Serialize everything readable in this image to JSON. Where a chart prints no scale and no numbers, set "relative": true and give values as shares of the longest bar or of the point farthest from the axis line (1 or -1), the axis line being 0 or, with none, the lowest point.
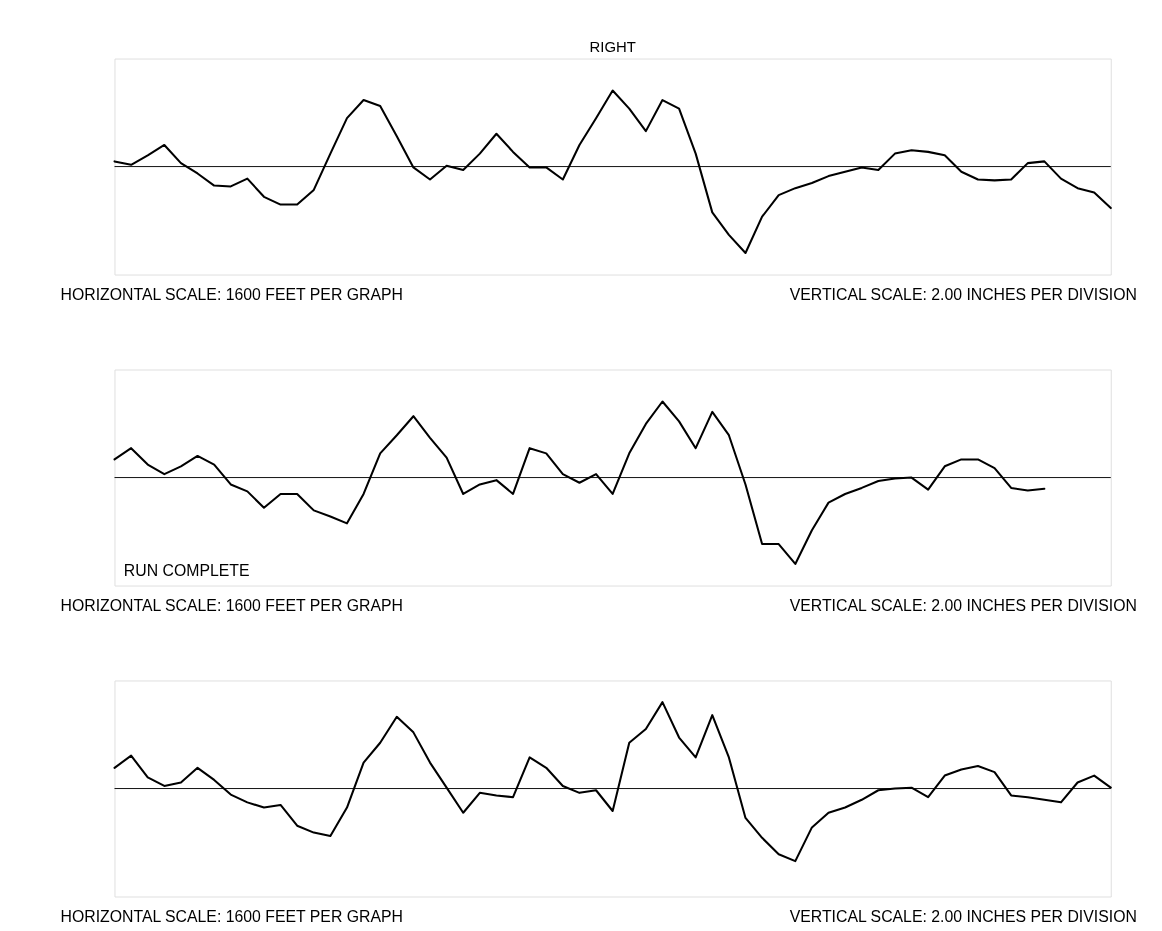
{
  "chart_data": [
    {
      "type": "line",
      "title": "RIGHT",
      "relative": true,
      "categories": [
        null,
        null,
        null,
        null,
        null,
        null,
        null,
        null,
        null,
        null,
        null,
        null,
        null,
        null,
        null,
        null,
        null,
        null,
        null,
        null,
        null,
        null,
        null,
        null,
        null,
        null,
        null,
        null,
        null,
        null,
        null,
        null,
        null,
        null,
        null,
        null,
        null,
        null,
        null,
        null,
        null,
        null,
        null,
        null,
        null,
        null,
        null,
        null,
        null,
        null,
        null,
        null,
        null,
        null,
        null,
        null,
        null,
        null,
        null,
        null,
        null
      ],
      "series": [
        {
          "color": "#000000",
          "values": [
            0.06,
            0.02,
            0.13,
            0.25,
            0.04,
            -0.08,
            -0.22,
            -0.23,
            -0.14,
            -0.35,
            -0.44,
            -0.44,
            -0.27,
            0.15,
            0.56,
            0.77,
            0.7,
            0.35,
            -0.01,
            -0.15,
            0.01,
            -0.04,
            0.15,
            0.38,
            0.17,
            -0.01,
            -0.01,
            -0.15,
            0.25,
            0.56,
            0.88,
            0.67,
            0.41,
            0.77,
            0.67,
            0.15,
            -0.53,
            -0.79,
            -1,
            -0.58,
            -0.33,
            -0.25,
            -0.19,
            -0.11,
            -0.06,
            -0.01,
            -0.04,
            0.15,
            0.19,
            0.17,
            0.13,
            -0.06,
            -0.15,
            -0.16,
            -0.15,
            0.04,
            0.06,
            -0.14,
            -0.25,
            -0.3,
            -0.48
          ]
        }
      ],
      "ref_lines": [
        {
          "axis": "y",
          "value": 0,
          "color": "#000000"
        }
      ],
      "annotations": [
        "HORIZONTAL SCALE: 1600 FEET PER GRAPH",
        "VERTICAL SCALE: 2.00 INCHES PER DIVISION"
      ]
    },
    {
      "type": "line",
      "relative": true,
      "categories": [
        null,
        null,
        null,
        null,
        null,
        null,
        null,
        null,
        null,
        null,
        null,
        null,
        null,
        null,
        null,
        null,
        null,
        null,
        null,
        null,
        null,
        null,
        null,
        null,
        null,
        null,
        null,
        null,
        null,
        null,
        null,
        null,
        null,
        null,
        null,
        null,
        null,
        null,
        null,
        null,
        null,
        null,
        null,
        null,
        null,
        null,
        null,
        null,
        null,
        null,
        null,
        null,
        null,
        null,
        null,
        null,
        null,
        null,
        null,
        null,
        null
      ],
      "series": [
        {
          "color": "#000000",
          "values": [
            0.21,
            0.34,
            0.15,
            0.04,
            0.13,
            0.25,
            0.15,
            -0.08,
            -0.16,
            -0.35,
            -0.19,
            -0.19,
            -0.38,
            -0.45,
            -0.53,
            -0.19,
            0.28,
            0.49,
            0.71,
            0.46,
            0.23,
            -0.19,
            -0.08,
            -0.03,
            -0.19,
            0.34,
            0.28,
            0.04,
            -0.06,
            0.04,
            -0.19,
            0.28,
            0.62,
            0.88,
            0.65,
            0.34,
            0.76,
            0.49,
            -0.08,
            -0.77,
            -0.77,
            -1,
            -0.61,
            -0.29,
            -0.19,
            -0.12,
            -0.04,
            -0.01,
            0,
            -0.14,
            0.13,
            0.21,
            0.21,
            0.11,
            -0.12,
            -0.15,
            -0.13,
            null,
            null,
            null,
            null
          ]
        }
      ],
      "ref_lines": [
        {
          "axis": "y",
          "value": 0,
          "color": "#000000"
        }
      ],
      "annotations": [
        "HORIZONTAL SCALE: 1600 FEET PER GRAPH",
        "VERTICAL SCALE: 2.00 INCHES PER DIVISION",
        "RUN COMPLETE"
      ]
    },
    {
      "type": "line",
      "relative": true,
      "categories": [
        null,
        null,
        null,
        null,
        null,
        null,
        null,
        null,
        null,
        null,
        null,
        null,
        null,
        null,
        null,
        null,
        null,
        null,
        null,
        null,
        null,
        null,
        null,
        null,
        null,
        null,
        null,
        null,
        null,
        null,
        null,
        null,
        null,
        null,
        null,
        null,
        null,
        null,
        null,
        null,
        null,
        null,
        null,
        null,
        null,
        null,
        null,
        null,
        null,
        null,
        null,
        null,
        null,
        null,
        null,
        null,
        null,
        null,
        null,
        null,
        null
      ],
      "series": [
        {
          "color": "#000000",
          "values": [
            0.24,
            0.38,
            0.13,
            0.03,
            0.07,
            0.24,
            0.1,
            -0.07,
            -0.16,
            -0.22,
            -0.19,
            -0.43,
            -0.51,
            -0.55,
            -0.22,
            0.3,
            0.53,
            0.83,
            0.65,
            0.3,
            0.01,
            -0.28,
            -0.05,
            -0.08,
            -0.1,
            0.36,
            0.24,
            0.03,
            -0.05,
            -0.02,
            -0.26,
            0.53,
            0.69,
            1,
            0.59,
            0.36,
            0.85,
            0.36,
            -0.34,
            -0.57,
            -0.76,
            -0.84,
            -0.45,
            -0.28,
            -0.22,
            -0.13,
            -0.02,
            0,
            0.01,
            -0.1,
            0.15,
            0.22,
            0.26,
            0.19,
            -0.08,
            -0.1,
            -0.13,
            -0.16,
            0.07,
            0.15,
            0.01
          ]
        }
      ],
      "ref_lines": [
        {
          "axis": "y",
          "value": 0,
          "color": "#000000"
        }
      ],
      "annotations": [
        "HORIZONTAL SCALE: 1600 FEET PER GRAPH",
        "VERTICAL SCALE: 2.00 INCHES PER DIVISION"
      ]
    }
  ]
}
